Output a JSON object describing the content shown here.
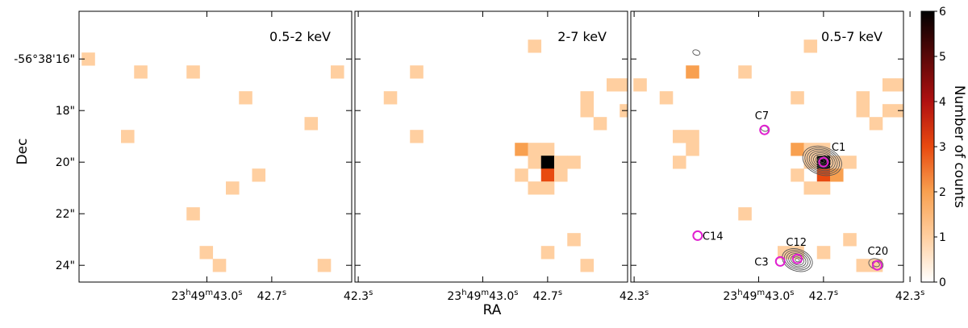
{
  "chart_data": {
    "type": "heatmap",
    "xlabel": "RA",
    "ylabel": "Dec",
    "colorbar": {
      "label": "Number of counts",
      "range": [
        0,
        6
      ],
      "ticks": [
        "0",
        "1",
        "2",
        "3",
        "4",
        "5",
        "6"
      ],
      "colors": [
        "#ffffff",
        "#ffcfa0",
        "#f8a050",
        "#e84a10",
        "#b01010",
        "#5a0808",
        "#000000"
      ]
    },
    "ra_ticks": [
      {
        "label": "23h49m43.0s",
        "h": "23",
        "m": "49",
        "s": "43.0",
        "ra_s": 43.0
      },
      {
        "label": "42.7s",
        "num": "42.7",
        "sup": "s",
        "ra_s": 42.7
      },
      {
        "label": "42.3s",
        "num": "42.3",
        "sup": "s",
        "ra_s": 42.3
      }
    ],
    "dec_ticks": [
      {
        "label": "-56°38'16\"",
        "arcsec": 16
      },
      {
        "label": "18\"",
        "arcsec": 18
      },
      {
        "label": "20\"",
        "arcsec": 20
      },
      {
        "label": "22\"",
        "arcsec": 22
      },
      {
        "label": "24\"",
        "arcsec": 24
      }
    ],
    "pixel_arcsec": 0.5,
    "extent_arcsec": {
      "dra": [
        -2.8,
        7.6
      ],
      "ddec": [
        -1.9,
        8.6
      ]
    },
    "panels": [
      {
        "name": "0.5-2 keV",
        "label": "0.5-2 keV",
        "pixels": [
          {
            "dra": 7.25,
            "ddec": 6.75,
            "counts": 1
          },
          {
            "dra": 5.25,
            "ddec": 6.25,
            "counts": 1
          },
          {
            "dra": 3.25,
            "ddec": 6.25,
            "counts": 1
          },
          {
            "dra": -2.25,
            "ddec": 6.25,
            "counts": 1
          },
          {
            "dra": 1.25,
            "ddec": 5.25,
            "counts": 1
          },
          {
            "dra": -1.25,
            "ddec": 4.25,
            "counts": 1
          },
          {
            "dra": 5.75,
            "ddec": 3.75,
            "counts": 1
          },
          {
            "dra": 0.75,
            "ddec": 2.25,
            "counts": 1
          },
          {
            "dra": 1.75,
            "ddec": 1.75,
            "counts": 1
          },
          {
            "dra": 3.25,
            "ddec": 0.75,
            "counts": 1
          },
          {
            "dra": 2.75,
            "ddec": -0.75,
            "counts": 1
          },
          {
            "dra": 2.25,
            "ddec": -1.25,
            "counts": 1
          },
          {
            "dra": -1.75,
            "ddec": -1.25,
            "counts": 1
          }
        ]
      },
      {
        "name": "2-7 keV",
        "label": "2-7 keV",
        "pixels": [
          {
            "dra": 0.75,
            "ddec": 7.25,
            "counts": 1
          },
          {
            "dra": 5.25,
            "ddec": 6.25,
            "counts": 1
          },
          {
            "dra": -2.25,
            "ddec": 5.75,
            "counts": 1
          },
          {
            "dra": -2.75,
            "ddec": 5.75,
            "counts": 1
          },
          {
            "dra": 6.25,
            "ddec": 5.25,
            "counts": 1
          },
          {
            "dra": -1.25,
            "ddec": 4.75,
            "counts": 1
          },
          {
            "dra": -1.25,
            "ddec": 5.25,
            "counts": 1
          },
          {
            "dra": -2.75,
            "ddec": 4.75,
            "counts": 1
          },
          {
            "dra": -1.75,
            "ddec": 4.25,
            "counts": 1
          },
          {
            "dra": 5.25,
            "ddec": 3.75,
            "counts": 1
          },
          {
            "dra": 1.25,
            "ddec": 3.25,
            "counts": 2
          },
          {
            "dra": 0.75,
            "ddec": 3.25,
            "counts": 1
          },
          {
            "dra": 0.25,
            "ddec": 3.25,
            "counts": 1
          },
          {
            "dra": 0.75,
            "ddec": 2.75,
            "counts": 1
          },
          {
            "dra": 0.25,
            "ddec": 2.75,
            "counts": 6
          },
          {
            "dra": -0.25,
            "ddec": 2.75,
            "counts": 1
          },
          {
            "dra": -0.75,
            "ddec": 2.75,
            "counts": 1
          },
          {
            "dra": 1.25,
            "ddec": 2.25,
            "counts": 1
          },
          {
            "dra": 0.25,
            "ddec": 2.25,
            "counts": 3
          },
          {
            "dra": -0.25,
            "ddec": 2.25,
            "counts": 1
          },
          {
            "dra": 0.75,
            "ddec": 1.75,
            "counts": 1
          },
          {
            "dra": 0.25,
            "ddec": 1.75,
            "counts": 1
          },
          {
            "dra": -0.75,
            "ddec": -0.25,
            "counts": 1
          },
          {
            "dra": 0.25,
            "ddec": -0.75,
            "counts": 1
          },
          {
            "dra": -1.25,
            "ddec": -1.25,
            "counts": 1
          }
        ]
      },
      {
        "name": "0.5-7 keV",
        "label": "0.5-7 keV",
        "pixels": [
          {
            "dra": 0.75,
            "ddec": 7.25,
            "counts": 1
          },
          {
            "dra": 5.25,
            "ddec": 6.25,
            "counts": 2
          },
          {
            "dra": 3.25,
            "ddec": 6.25,
            "counts": 1
          },
          {
            "dra": 7.25,
            "ddec": 5.75,
            "counts": 1
          },
          {
            "dra": -2.25,
            "ddec": 5.75,
            "counts": 1
          },
          {
            "dra": -2.75,
            "ddec": 5.75,
            "counts": 1
          },
          {
            "dra": 6.25,
            "ddec": 5.25,
            "counts": 1
          },
          {
            "dra": 1.25,
            "ddec": 5.25,
            "counts": 1
          },
          {
            "dra": -1.25,
            "ddec": 4.75,
            "counts": 1
          },
          {
            "dra": -1.25,
            "ddec": 5.25,
            "counts": 1
          },
          {
            "dra": -2.25,
            "ddec": 4.75,
            "counts": 1
          },
          {
            "dra": -2.75,
            "ddec": 4.75,
            "counts": 1
          },
          {
            "dra": -1.75,
            "ddec": 4.25,
            "counts": 1
          },
          {
            "dra": 5.75,
            "ddec": 3.75,
            "counts": 1
          },
          {
            "dra": 5.25,
            "ddec": 3.75,
            "counts": 1
          },
          {
            "dra": 5.25,
            "ddec": 3.25,
            "counts": 1
          },
          {
            "dra": 5.75,
            "ddec": 2.75,
            "counts": 1
          },
          {
            "dra": 1.25,
            "ddec": 3.25,
            "counts": 2
          },
          {
            "dra": 0.75,
            "ddec": 3.25,
            "counts": 1
          },
          {
            "dra": 0.25,
            "ddec": 3.25,
            "counts": 1
          },
          {
            "dra": 0.75,
            "ddec": 2.75,
            "counts": 1
          },
          {
            "dra": 0.25,
            "ddec": 2.75,
            "counts": 6
          },
          {
            "dra": -0.25,
            "ddec": 2.75,
            "counts": 1
          },
          {
            "dra": -0.75,
            "ddec": 2.75,
            "counts": 1
          },
          {
            "dra": 1.25,
            "ddec": 2.25,
            "counts": 1
          },
          {
            "dra": 0.25,
            "ddec": 2.25,
            "counts": 3
          },
          {
            "dra": -0.25,
            "ddec": 2.25,
            "counts": 2
          },
          {
            "dra": 0.75,
            "ddec": 1.75,
            "counts": 1
          },
          {
            "dra": 0.25,
            "ddec": 1.75,
            "counts": 1
          },
          {
            "dra": 3.25,
            "ddec": 0.75,
            "counts": 1
          },
          {
            "dra": 1.25,
            "ddec": -0.75,
            "counts": 1
          },
          {
            "dra": 1.75,
            "ddec": -0.75,
            "counts": 1
          },
          {
            "dra": -0.75,
            "ddec": -0.25,
            "counts": 1
          },
          {
            "dra": 0.25,
            "ddec": -0.75,
            "counts": 1
          },
          {
            "dra": -1.25,
            "ddec": -1.25,
            "counts": 1
          },
          {
            "dra": -1.75,
            "ddec": -1.25,
            "counts": 1
          }
        ],
        "sources": [
          {
            "name": "C1",
            "label": "C1",
            "dra": 0.25,
            "ddec": 2.75
          },
          {
            "name": "C7",
            "label": "C7",
            "dra": 2.5,
            "ddec": 4.0
          },
          {
            "name": "C12",
            "label": "C12",
            "dra": 1.25,
            "ddec": -1.0
          },
          {
            "name": "C3",
            "label": "C3",
            "dra": 1.9,
            "ddec": -1.1
          },
          {
            "name": "C14",
            "label": "C14",
            "dra": 5.05,
            "ddec": -0.1
          },
          {
            "name": "C20",
            "label": "C20",
            "dra": -1.8,
            "ddec": -1.25
          }
        ],
        "contour_centers": [
          {
            "dra": 0.3,
            "ddec": 2.8,
            "levels": 9
          },
          {
            "dra": 1.25,
            "ddec": -1.05,
            "levels": 7
          },
          {
            "dra": -1.75,
            "ddec": -1.2,
            "levels": 2
          },
          {
            "dra": 2.5,
            "ddec": 4.05,
            "levels": 1
          },
          {
            "dra": 5.1,
            "ddec": 7.0,
            "levels": 1
          }
        ]
      }
    ]
  },
  "colors": {
    "source_circle": "#e020d0",
    "contour": "#555555",
    "frame": "#000000"
  }
}
